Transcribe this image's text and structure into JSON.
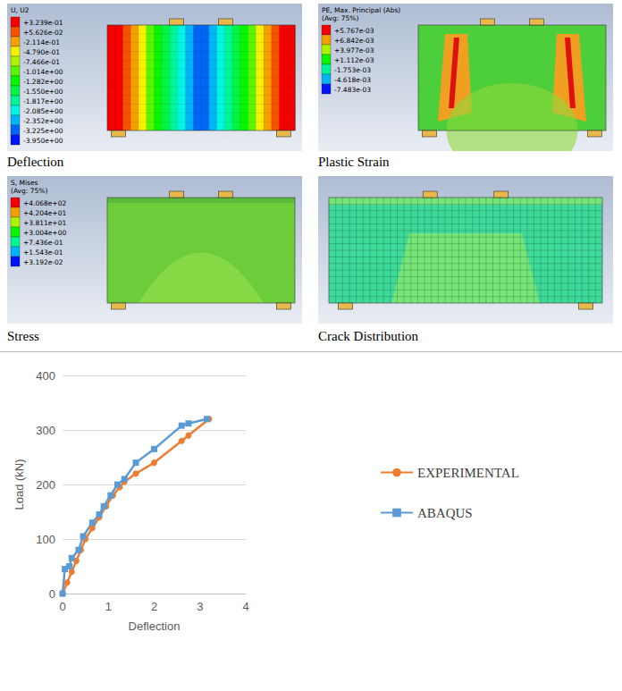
{
  "panels": [
    {
      "caption": "Deflection",
      "legend_title": [
        "U, U2"
      ],
      "legend_values": [
        "+3.239e-01",
        "+5.626e-02",
        "-2.114e-01",
        "-4.790e-01",
        "-7.466e-01",
        "-1.014e+00",
        "-1.282e+00",
        "-1.550e+00",
        "-1.817e+00",
        "-2.085e+00",
        "-2.352e+00",
        "-3.225e+00",
        "-3.950e+00"
      ]
    },
    {
      "caption": "Plastic Strain",
      "legend_title": [
        "PE, Max. Principal (Abs)",
        "(Avg: 75%)"
      ],
      "legend_values": [
        "+5.767e-03",
        "+6.842e-03",
        "+3.977e-03",
        "+1.112e-03",
        "-1.753e-03",
        "-4.618e-03",
        "-7.483e-03"
      ]
    },
    {
      "caption": "Stress",
      "legend_title": [
        "S, Mises",
        "(Avg: 75%)"
      ],
      "legend_values": [
        "+4.068e+02",
        "+4.204e+01",
        "+3.811e+01",
        "+3.004e+00",
        "+7.436e-01",
        "+1.543e-01",
        "+3.192e-02"
      ]
    },
    {
      "caption": "Crack Distribution"
    }
  ],
  "chart_data": {
    "type": "line",
    "x_label": "Deflection",
    "y_label": "Load (kN)",
    "xlim": [
      0,
      4
    ],
    "xticks": [
      0,
      1,
      2,
      3,
      4
    ],
    "ylim": [
      0,
      400
    ],
    "yticks": [
      0,
      100,
      200,
      300,
      400
    ],
    "grid": true,
    "legend": "right",
    "series": [
      {
        "name": "EXPERIMENTAL",
        "color": "#ed7d31",
        "marker": "circle",
        "x": [
          0,
          0.1,
          0.2,
          0.3,
          0.4,
          0.5,
          0.65,
          0.8,
          0.95,
          1.1,
          1.25,
          1.35,
          1.6,
          2.0,
          2.6,
          2.75,
          3.2
        ],
        "values": [
          0,
          20,
          40,
          60,
          80,
          100,
          120,
          140,
          160,
          180,
          195,
          205,
          220,
          240,
          280,
          290,
          320
        ]
      },
      {
        "name": "ABAQUS",
        "color": "#5b9bd5",
        "marker": "square",
        "x": [
          0,
          0.05,
          0.15,
          0.2,
          0.35,
          0.45,
          0.65,
          0.8,
          0.9,
          1.05,
          1.2,
          1.35,
          1.6,
          2.0,
          2.6,
          2.75,
          3.15
        ],
        "values": [
          0,
          45,
          50,
          65,
          80,
          105,
          130,
          145,
          160,
          180,
          200,
          210,
          240,
          265,
          308,
          312,
          320
        ]
      }
    ]
  }
}
